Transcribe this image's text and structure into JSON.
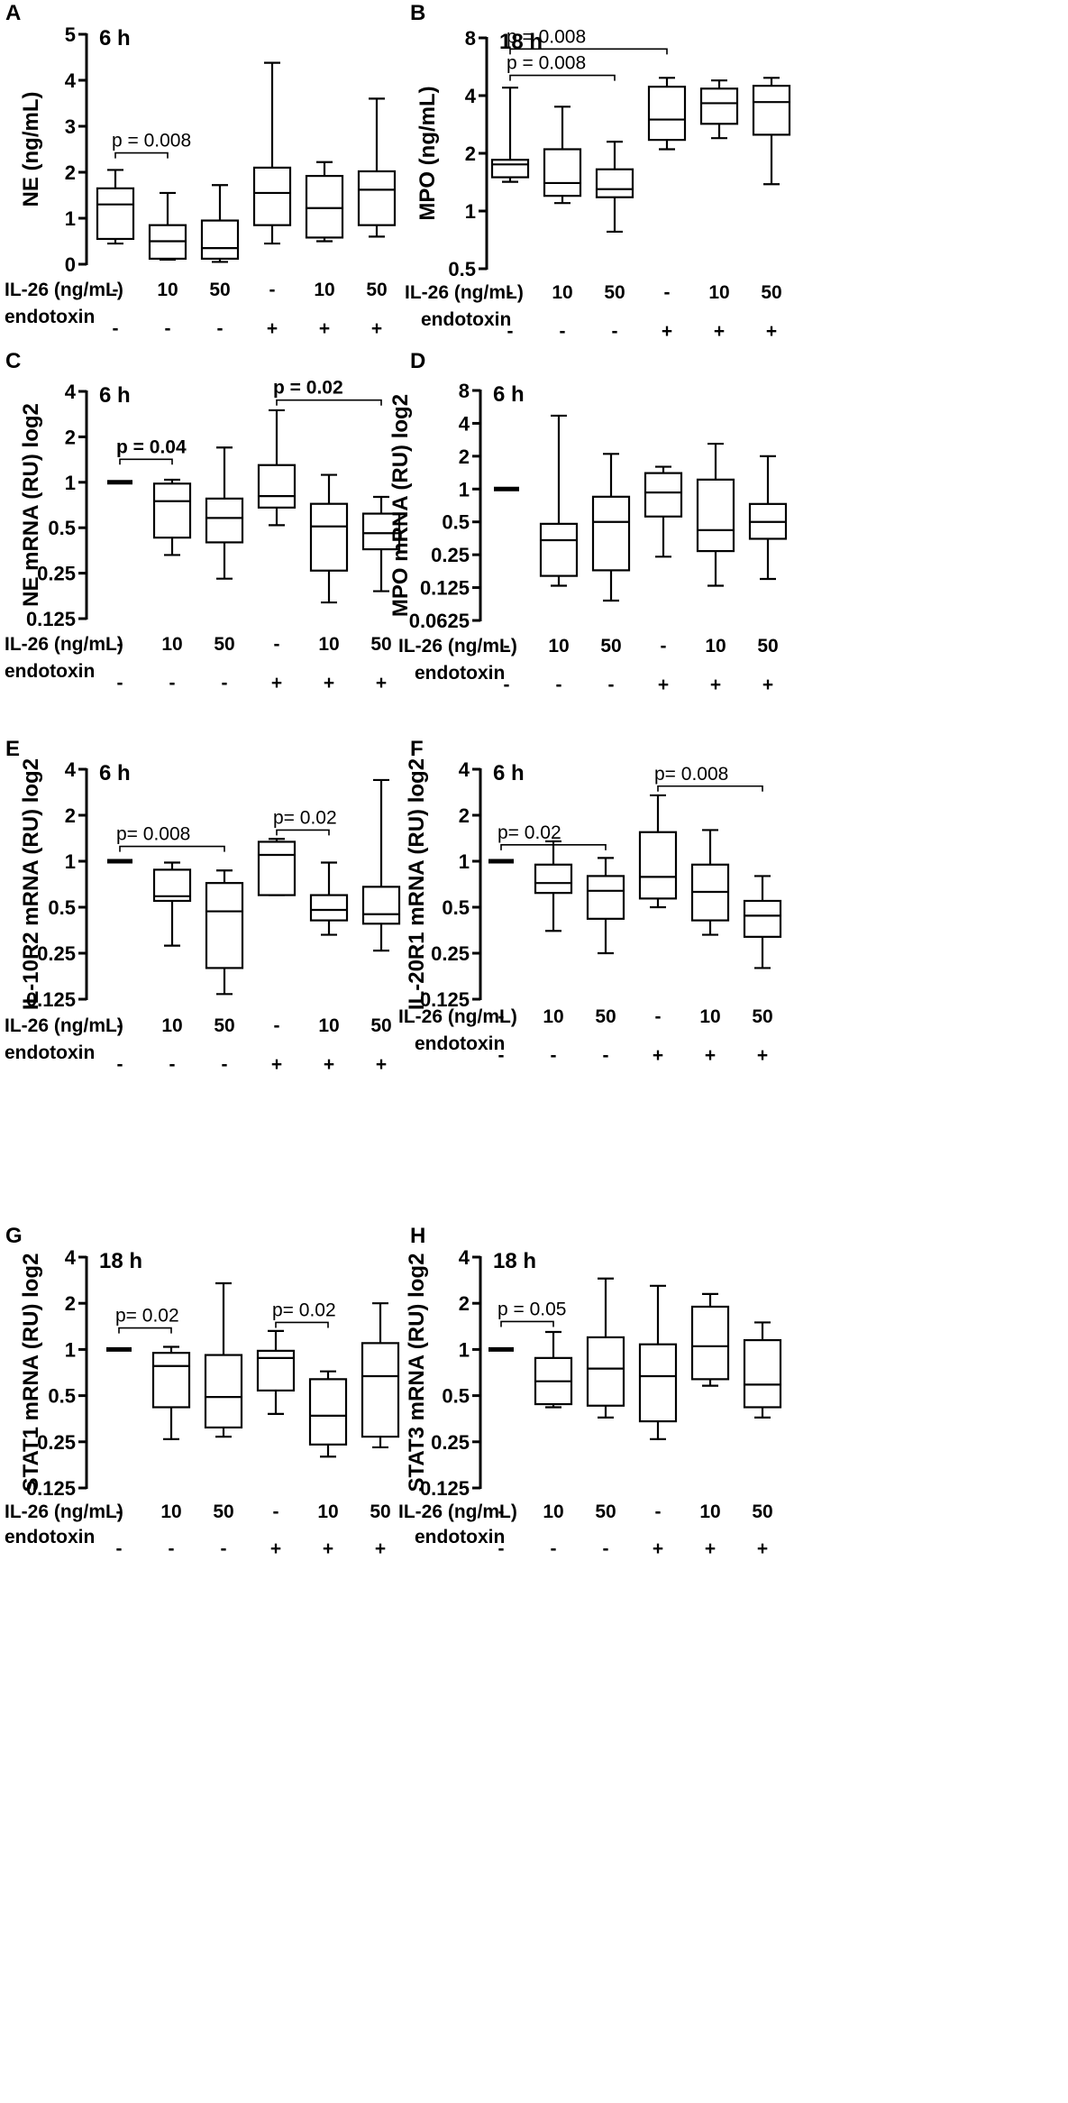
{
  "chart_data": [
    {
      "type": "box",
      "panel": "A",
      "time": "6 h",
      "ylabel": "NE (ng/mL)",
      "yscale": "linear",
      "ylim": [
        0,
        5
      ],
      "yticks": [
        0,
        1,
        2,
        3,
        4,
        5
      ],
      "ytick_labels": [
        "0",
        "1",
        "2",
        "3",
        "4",
        "5"
      ],
      "row_labels": [
        "IL-26 (ng/mL)",
        "endotoxin"
      ],
      "il26": [
        "-",
        "10",
        "50",
        "-",
        "10",
        "50"
      ],
      "endotoxin": [
        "-",
        "-",
        "-",
        "+",
        "+",
        "+"
      ],
      "boxes": [
        {
          "min": 0.45,
          "q1": 0.55,
          "median": 1.3,
          "q3": 1.65,
          "max": 2.05
        },
        {
          "min": 0.1,
          "q1": 0.12,
          "median": 0.5,
          "q3": 0.85,
          "max": 1.55
        },
        {
          "min": 0.05,
          "q1": 0.12,
          "median": 0.35,
          "q3": 0.95,
          "max": 1.72
        },
        {
          "min": 0.45,
          "q1": 0.85,
          "median": 1.55,
          "q3": 2.1,
          "max": 4.38
        },
        {
          "min": 0.5,
          "q1": 0.58,
          "median": 1.22,
          "q3": 1.92,
          "max": 2.22
        },
        {
          "min": 0.6,
          "q1": 0.85,
          "median": 1.62,
          "q3": 2.02,
          "max": 3.6
        }
      ],
      "ref_bar": null,
      "annotations": [
        {
          "text": "p = 0.008",
          "from": 0,
          "to": 1,
          "y": 2.42,
          "bold": false
        }
      ]
    },
    {
      "type": "box",
      "panel": "B",
      "time": "18 h",
      "ylabel": "MPO (ng/mL)",
      "yscale": "log2",
      "ylim": [
        0.5,
        8
      ],
      "yticks": [
        0.5,
        1,
        2,
        4,
        8
      ],
      "ytick_labels": [
        "0.5",
        "1",
        "2",
        "4",
        "8"
      ],
      "row_labels": [
        "IL-26 (ng/mL)",
        "endotoxin"
      ],
      "il26": [
        "-",
        "10",
        "50",
        "-",
        "10",
        "50"
      ],
      "endotoxin": [
        "-",
        "-",
        "-",
        "+",
        "+",
        "+"
      ],
      "boxes": [
        {
          "min": 1.42,
          "q1": 1.5,
          "median": 1.75,
          "q3": 1.85,
          "max": 4.4
        },
        {
          "min": 1.1,
          "q1": 1.2,
          "median": 1.4,
          "q3": 2.1,
          "max": 3.5
        },
        {
          "min": 0.78,
          "q1": 1.18,
          "median": 1.3,
          "q3": 1.65,
          "max": 2.3
        },
        {
          "min": 2.1,
          "q1": 2.35,
          "median": 3.0,
          "q3": 4.45,
          "max": 4.95
        },
        {
          "min": 2.4,
          "q1": 2.85,
          "median": 3.65,
          "q3": 4.35,
          "max": 4.8
        },
        {
          "min": 1.38,
          "q1": 2.5,
          "median": 3.7,
          "q3": 4.5,
          "max": 4.95
        }
      ],
      "ref_bar": null,
      "annotations": [
        {
          "text": "p = 0.008",
          "from": 0,
          "to": 3,
          "y": 7.0,
          "bold": false
        },
        {
          "text": "p = 0.008",
          "from": 0,
          "to": 2,
          "y": 5.1,
          "bold": false
        }
      ]
    },
    {
      "type": "box",
      "panel": "C",
      "time": "6 h",
      "ylabel": "NE mRNA (RU) log2",
      "yscale": "log2",
      "ylim": [
        0.125,
        4
      ],
      "yticks": [
        0.125,
        0.25,
        0.5,
        1,
        2,
        4
      ],
      "ytick_labels": [
        "0.125",
        "0.25",
        "0.5",
        "1",
        "2",
        "4"
      ],
      "row_labels": [
        "IL-26 (ng/mL)",
        "endotoxin"
      ],
      "il26": [
        "-",
        "10",
        "50",
        "-",
        "10",
        "50"
      ],
      "endotoxin": [
        "-",
        "-",
        "-",
        "+",
        "+",
        "+"
      ],
      "boxes": [
        null,
        {
          "min": 0.33,
          "q1": 0.43,
          "median": 0.75,
          "q3": 0.98,
          "max": 1.04
        },
        {
          "min": 0.23,
          "q1": 0.4,
          "median": 0.58,
          "q3": 0.78,
          "max": 1.7
        },
        {
          "min": 0.52,
          "q1": 0.68,
          "median": 0.81,
          "q3": 1.3,
          "max": 3.0
        },
        {
          "min": 0.16,
          "q1": 0.26,
          "median": 0.51,
          "q3": 0.72,
          "max": 1.12
        },
        {
          "min": 0.19,
          "q1": 0.36,
          "median": 0.46,
          "q3": 0.62,
          "max": 0.8
        }
      ],
      "ref_bar": {
        "index": 0,
        "value": 1
      },
      "annotations": [
        {
          "text": "p = 0.04",
          "from": 0,
          "to": 1,
          "y": 1.42,
          "bold": true
        },
        {
          "text": "p = 0.02",
          "from": 3,
          "to": 5,
          "y": 3.5,
          "bold": true
        }
      ]
    },
    {
      "type": "box",
      "panel": "D",
      "time": "6 h",
      "ylabel": "MPO mRNA (RU) log2",
      "yscale": "log2",
      "ylim": [
        0.0625,
        8
      ],
      "yticks": [
        0.0625,
        0.125,
        0.25,
        0.5,
        1,
        2,
        4,
        8
      ],
      "ytick_labels": [
        "0.0625",
        "0.125",
        "0.25",
        "0.5",
        "1",
        "2",
        "4",
        "8"
      ],
      "row_labels": [
        "IL-26 (ng/mL)",
        "endotoxin"
      ],
      "il26": [
        "-",
        "10",
        "50",
        "-",
        "10",
        "50"
      ],
      "endotoxin": [
        "-",
        "-",
        "-",
        "+",
        "+",
        "+"
      ],
      "boxes": [
        null,
        {
          "min": 0.13,
          "q1": 0.16,
          "median": 0.34,
          "q3": 0.48,
          "max": 4.7
        },
        {
          "min": 0.095,
          "q1": 0.18,
          "median": 0.5,
          "q3": 0.85,
          "max": 2.1
        },
        {
          "min": 0.24,
          "q1": 0.56,
          "median": 0.93,
          "q3": 1.4,
          "max": 1.6
        },
        {
          "min": 0.13,
          "q1": 0.27,
          "median": 0.42,
          "q3": 1.22,
          "max": 2.6
        },
        {
          "min": 0.15,
          "q1": 0.35,
          "median": 0.5,
          "q3": 0.73,
          "max": 2.0
        }
      ],
      "ref_bar": {
        "index": 0,
        "value": 1
      },
      "annotations": []
    },
    {
      "type": "box",
      "panel": "E",
      "time": "6 h",
      "ylabel": "IL-10R2 mRNA (RU) log2",
      "yscale": "log2",
      "ylim": [
        0.125,
        4
      ],
      "yticks": [
        0.125,
        0.25,
        0.5,
        1,
        2,
        4
      ],
      "ytick_labels": [
        "0.125",
        "0.25",
        "0.5",
        "1",
        "2",
        "4"
      ],
      "row_labels": [
        "IL-26 (ng/mL)",
        "endotoxin"
      ],
      "il26": [
        "-",
        "10",
        "50",
        "-",
        "10",
        "50"
      ],
      "endotoxin": [
        "-",
        "-",
        "-",
        "+",
        "+",
        "+"
      ],
      "boxes": [
        null,
        {
          "min": 0.28,
          "q1": 0.55,
          "median": 0.59,
          "q3": 0.88,
          "max": 0.98
        },
        {
          "min": 0.135,
          "q1": 0.2,
          "median": 0.47,
          "q3": 0.72,
          "max": 0.87
        },
        {
          "min": 0.6,
          "q1": 0.6,
          "median": 1.1,
          "q3": 1.34,
          "max": 1.4
        },
        {
          "min": 0.33,
          "q1": 0.41,
          "median": 0.48,
          "q3": 0.6,
          "max": 0.98
        },
        {
          "min": 0.26,
          "q1": 0.39,
          "median": 0.45,
          "q3": 0.68,
          "max": 3.4
        }
      ],
      "ref_bar": {
        "index": 0,
        "value": 1
      },
      "annotations": [
        {
          "text": "p= 0.008",
          "from": 0,
          "to": 2,
          "y": 1.25,
          "bold": false
        },
        {
          "text": "p= 0.02",
          "from": 3,
          "to": 4,
          "y": 1.6,
          "bold": false
        }
      ]
    },
    {
      "type": "box",
      "panel": "F",
      "time": "6 h",
      "ylabel": "IL-20R1 mRNA (RU) log2",
      "yscale": "log2",
      "ylim": [
        0.125,
        4
      ],
      "yticks": [
        0.125,
        0.25,
        0.5,
        1,
        2,
        4
      ],
      "ytick_labels": [
        "0.125",
        "0.25",
        "0.5",
        "1",
        "2",
        "4"
      ],
      "row_labels": [
        "IL-26 (ng/mL)",
        "endotoxin"
      ],
      "il26": [
        "-",
        "10",
        "50",
        "-",
        "10",
        "50"
      ],
      "endotoxin": [
        "-",
        "-",
        "-",
        "+",
        "+",
        "+"
      ],
      "boxes": [
        null,
        {
          "min": 0.35,
          "q1": 0.62,
          "median": 0.72,
          "q3": 0.95,
          "max": 1.35
        },
        {
          "min": 0.25,
          "q1": 0.42,
          "median": 0.64,
          "q3": 0.8,
          "max": 1.05
        },
        {
          "min": 0.5,
          "q1": 0.57,
          "median": 0.79,
          "q3": 1.55,
          "max": 2.7
        },
        {
          "min": 0.33,
          "q1": 0.41,
          "median": 0.63,
          "q3": 0.95,
          "max": 1.6
        },
        {
          "min": 0.2,
          "q1": 0.32,
          "median": 0.44,
          "q3": 0.55,
          "max": 0.8
        }
      ],
      "ref_bar": {
        "index": 0,
        "value": 1
      },
      "annotations": [
        {
          "text": "p= 0.02",
          "from": 0,
          "to": 2,
          "y": 1.28,
          "bold": false
        },
        {
          "text": "p= 0.008",
          "from": 3,
          "to": 5,
          "y": 3.1,
          "bold": false
        }
      ]
    },
    {
      "type": "box",
      "panel": "G",
      "time": "18 h",
      "ylabel": "STAT1 mRNA (RU) log2",
      "yscale": "log2",
      "ylim": [
        0.125,
        4
      ],
      "yticks": [
        0.125,
        0.25,
        0.5,
        1,
        2,
        4
      ],
      "ytick_labels": [
        "0.125",
        "0.25",
        "0.5",
        "1",
        "2",
        "4"
      ],
      "row_labels": [
        "IL-26 (ng/mL)",
        "endotoxin"
      ],
      "il26": [
        "-",
        "10",
        "50",
        "-",
        "10",
        "50"
      ],
      "endotoxin": [
        "-",
        "-",
        "-",
        "+",
        "+",
        "+"
      ],
      "boxes": [
        null,
        {
          "min": 0.26,
          "q1": 0.42,
          "median": 0.78,
          "q3": 0.95,
          "max": 1.04
        },
        {
          "min": 0.27,
          "q1": 0.31,
          "median": 0.49,
          "q3": 0.92,
          "max": 2.7
        },
        {
          "min": 0.38,
          "q1": 0.54,
          "median": 0.88,
          "q3": 0.98,
          "max": 1.32
        },
        {
          "min": 0.2,
          "q1": 0.24,
          "median": 0.37,
          "q3": 0.64,
          "max": 0.72
        },
        {
          "min": 0.23,
          "q1": 0.27,
          "median": 0.67,
          "q3": 1.1,
          "max": 2.0
        }
      ],
      "ref_bar": {
        "index": 0,
        "value": 1
      },
      "annotations": [
        {
          "text": "p= 0.02",
          "from": 0,
          "to": 1,
          "y": 1.38,
          "bold": false
        },
        {
          "text": "p= 0.02",
          "from": 3,
          "to": 4,
          "y": 1.5,
          "bold": false
        }
      ]
    },
    {
      "type": "box",
      "panel": "H",
      "time": "18 h",
      "ylabel": "STAT3 mRNA (RU) log2",
      "yscale": "log2",
      "ylim": [
        0.125,
        4
      ],
      "yticks": [
        0.125,
        0.25,
        0.5,
        1,
        2,
        4
      ],
      "ytick_labels": [
        "0.125",
        "0.25",
        "0.5",
        "1",
        "2",
        "4"
      ],
      "row_labels": [
        "IL-26 (ng/mL)",
        "endotoxin"
      ],
      "il26": [
        "-",
        "10",
        "50",
        "-",
        "10",
        "50"
      ],
      "endotoxin": [
        "-",
        "-",
        "-",
        "+",
        "+",
        "+"
      ],
      "boxes": [
        null,
        {
          "min": 0.42,
          "q1": 0.44,
          "median": 0.62,
          "q3": 0.88,
          "max": 1.3
        },
        {
          "min": 0.36,
          "q1": 0.43,
          "median": 0.75,
          "q3": 1.2,
          "max": 2.9
        },
        {
          "min": 0.26,
          "q1": 0.34,
          "median": 0.67,
          "q3": 1.08,
          "max": 2.6
        },
        {
          "min": 0.58,
          "q1": 0.64,
          "median": 1.05,
          "q3": 1.9,
          "max": 2.3
        },
        {
          "min": 0.36,
          "q1": 0.42,
          "median": 0.59,
          "q3": 1.15,
          "max": 1.5
        }
      ],
      "ref_bar": {
        "index": 0,
        "value": 1
      },
      "annotations": [
        {
          "text": "p = 0.05",
          "from": 0,
          "to": 1,
          "y": 1.52,
          "bold": false
        }
      ]
    }
  ]
}
